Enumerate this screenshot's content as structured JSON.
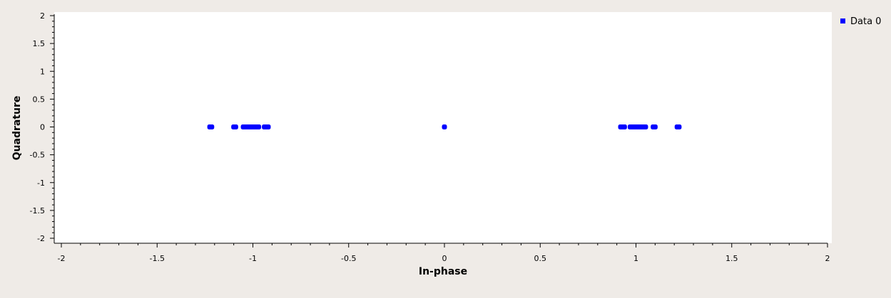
{
  "chart_data": {
    "type": "scatter",
    "xlabel": "In-phase",
    "ylabel": "Quadrature",
    "xlim": [
      -2,
      2
    ],
    "ylim": [
      -2,
      2
    ],
    "xticks": [
      "-2",
      "-1.5",
      "-1",
      "-0.5",
      "0",
      "0.5",
      "1",
      "1.5",
      "2"
    ],
    "yticks": [
      "2",
      "1.5",
      "1",
      "0.5",
      "0",
      "-0.5",
      "-1",
      "-1.5",
      "-2"
    ],
    "xtick_values": [
      -2,
      -1.5,
      -1,
      -0.5,
      0,
      0.5,
      1,
      1.5,
      2
    ],
    "ytick_values": [
      2,
      1.5,
      1,
      0.5,
      0,
      -0.5,
      -1,
      -1.5,
      -2
    ],
    "grid": false,
    "legend_position": "top-right",
    "series": [
      {
        "name": "Data 0",
        "color": "#0000ff",
        "points": [
          {
            "x": -1.225,
            "y": 0
          },
          {
            "x": -1.22,
            "y": 0
          },
          {
            "x": -1.215,
            "y": 0
          },
          {
            "x": -1.1,
            "y": 0
          },
          {
            "x": -1.095,
            "y": 0
          },
          {
            "x": -1.09,
            "y": 0
          },
          {
            "x": -1.05,
            "y": 0
          },
          {
            "x": -1.04,
            "y": 0
          },
          {
            "x": -1.03,
            "y": 0
          },
          {
            "x": -1.02,
            "y": 0
          },
          {
            "x": -1.01,
            "y": 0
          },
          {
            "x": -1.0,
            "y": 0
          },
          {
            "x": -0.99,
            "y": 0
          },
          {
            "x": -0.98,
            "y": 0
          },
          {
            "x": -0.97,
            "y": 0
          },
          {
            "x": -0.94,
            "y": 0
          },
          {
            "x": -0.93,
            "y": 0
          },
          {
            "x": -0.92,
            "y": 0
          },
          {
            "x": 0,
            "y": 0
          },
          {
            "x": 0.92,
            "y": 0
          },
          {
            "x": 0.93,
            "y": 0
          },
          {
            "x": 0.94,
            "y": 0
          },
          {
            "x": 0.97,
            "y": 0
          },
          {
            "x": 0.98,
            "y": 0
          },
          {
            "x": 0.99,
            "y": 0
          },
          {
            "x": 1.0,
            "y": 0
          },
          {
            "x": 1.01,
            "y": 0
          },
          {
            "x": 1.02,
            "y": 0
          },
          {
            "x": 1.03,
            "y": 0
          },
          {
            "x": 1.04,
            "y": 0
          },
          {
            "x": 1.05,
            "y": 0
          },
          {
            "x": 1.09,
            "y": 0
          },
          {
            "x": 1.095,
            "y": 0
          },
          {
            "x": 1.1,
            "y": 0
          },
          {
            "x": 1.215,
            "y": 0
          },
          {
            "x": 1.22,
            "y": 0
          },
          {
            "x": 1.225,
            "y": 0
          }
        ]
      }
    ],
    "colors": {
      "background": "#efebe7",
      "plot_area": "#ffffff",
      "axis": "#000000"
    }
  }
}
